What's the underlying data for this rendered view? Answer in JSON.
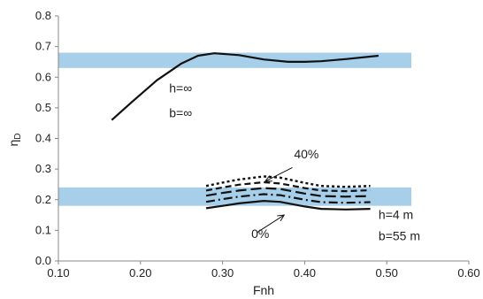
{
  "chart_data": {
    "type": "line",
    "xlabel": "Fnh",
    "ylabel": "ηD",
    "xlim": [
      0.1,
      0.6
    ],
    "ylim": [
      0.0,
      0.8
    ],
    "x_ticks": [
      "0.10",
      "0.20",
      "0.30",
      "0.40",
      "0.50",
      "0.60"
    ],
    "y_ticks": [
      "0.0",
      "0.1",
      "0.2",
      "0.3",
      "0.4",
      "0.5",
      "0.6",
      "0.7",
      "0.8"
    ],
    "grid": false,
    "bands": [
      {
        "x": [
          0.1,
          0.53
        ],
        "y": [
          0.63,
          0.68
        ],
        "color": "#a8cfe9"
      },
      {
        "x": [
          0.1,
          0.53
        ],
        "y": [
          0.18,
          0.24
        ],
        "color": "#a8cfe9"
      }
    ],
    "series": [
      {
        "style": "solid",
        "width": 2.2,
        "color": "#111111",
        "x": [
          0.165,
          0.19,
          0.22,
          0.25,
          0.27,
          0.29,
          0.32,
          0.35,
          0.38,
          0.4,
          0.42,
          0.45,
          0.49
        ],
        "y": [
          0.46,
          0.52,
          0.59,
          0.645,
          0.67,
          0.678,
          0.672,
          0.658,
          0.65,
          0.65,
          0.652,
          0.659,
          0.67
        ]
      },
      {
        "style": "solid",
        "width": 2.2,
        "color": "#111111",
        "x": [
          0.28,
          0.3,
          0.32,
          0.35,
          0.37,
          0.4,
          0.42,
          0.45,
          0.48
        ],
        "y": [
          0.172,
          0.18,
          0.188,
          0.196,
          0.193,
          0.178,
          0.17,
          0.168,
          0.17
        ]
      },
      {
        "style": "dashdot",
        "width": 2.2,
        "color": "#111111",
        "x": [
          0.28,
          0.3,
          0.32,
          0.35,
          0.37,
          0.4,
          0.42,
          0.45,
          0.48
        ],
        "y": [
          0.193,
          0.202,
          0.21,
          0.218,
          0.215,
          0.2,
          0.192,
          0.19,
          0.192
        ]
      },
      {
        "style": "longdash",
        "width": 2.2,
        "color": "#111111",
        "x": [
          0.28,
          0.3,
          0.32,
          0.35,
          0.37,
          0.4,
          0.42,
          0.45,
          0.48
        ],
        "y": [
          0.213,
          0.222,
          0.23,
          0.238,
          0.235,
          0.22,
          0.212,
          0.21,
          0.212
        ]
      },
      {
        "style": "dash",
        "width": 2.2,
        "color": "#111111",
        "x": [
          0.28,
          0.3,
          0.32,
          0.35,
          0.37,
          0.4,
          0.42,
          0.45,
          0.48
        ],
        "y": [
          0.23,
          0.24,
          0.249,
          0.257,
          0.253,
          0.238,
          0.23,
          0.228,
          0.231
        ]
      },
      {
        "style": "dot",
        "width": 2.4,
        "color": "#111111",
        "x": [
          0.28,
          0.3,
          0.32,
          0.35,
          0.37,
          0.4,
          0.42,
          0.45,
          0.48
        ],
        "y": [
          0.245,
          0.256,
          0.266,
          0.276,
          0.272,
          0.255,
          0.245,
          0.242,
          0.245
        ]
      }
    ],
    "annotations": {
      "h_inf": {
        "text": "h=∞",
        "x": 0.235,
        "y": 0.55
      },
      "b_inf": {
        "text": "b=∞",
        "x": 0.235,
        "y": 0.47
      },
      "pct40": {
        "text": "40%",
        "x": 0.387,
        "y": 0.335
      },
      "pct0": {
        "text": "0%",
        "x": 0.335,
        "y": 0.075
      },
      "h4": {
        "text": "h=4 m",
        "x": 0.49,
        "y": 0.137
      },
      "b55": {
        "text": "b=55 m",
        "x": 0.49,
        "y": 0.068
      }
    },
    "arrows": [
      {
        "from": [
          0.385,
          0.305
        ],
        "to": [
          0.352,
          0.26
        ]
      },
      {
        "from": [
          0.342,
          0.093
        ],
        "to": [
          0.375,
          0.15
        ]
      }
    ]
  }
}
